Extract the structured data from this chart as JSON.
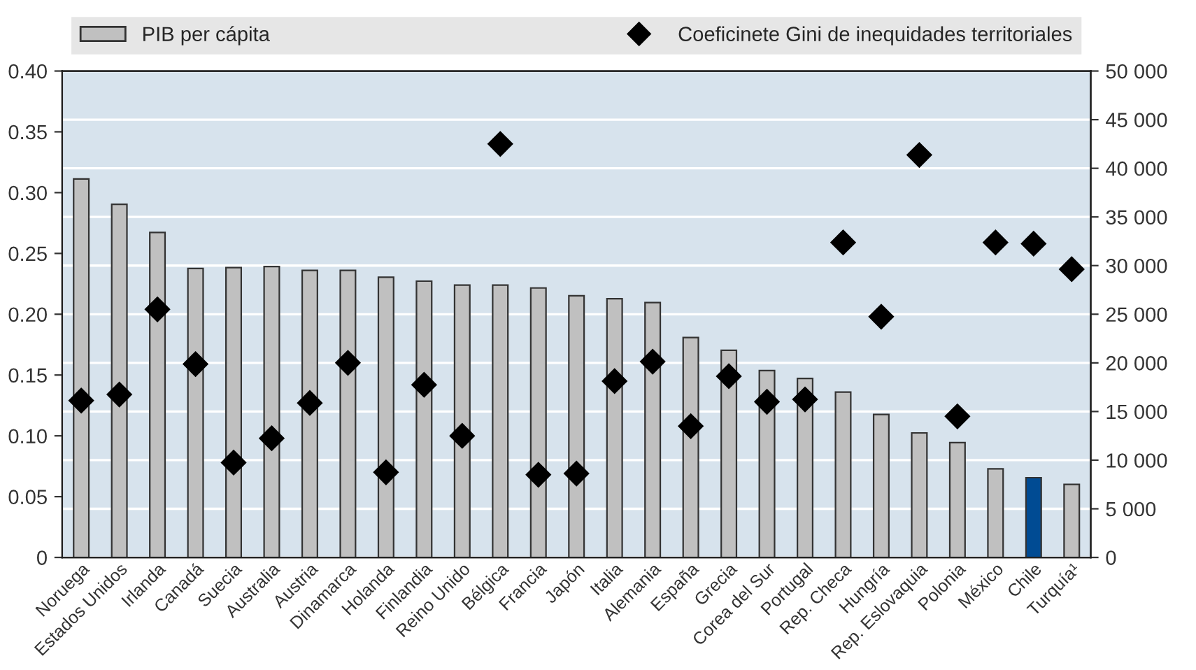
{
  "chart_data": {
    "type": "bar",
    "categories": [
      "Noruega",
      "Estados Unidos",
      "Irlanda",
      "Canadá",
      "Suecia",
      "Australia",
      "Austria",
      "Dinamarca",
      "Holanda",
      "Finlandia",
      "Reino Unido",
      "Bélgica",
      "Francia",
      "Japón",
      "Italia",
      "Alemania",
      "España",
      "Grecia",
      "Corea del Sur",
      "Portugal",
      "Rep. Checa",
      "Hungría",
      "Rep. Eslovaquia",
      "Polonia",
      "México",
      "Chile",
      "Turquía¹"
    ],
    "series": [
      {
        "name": "PIB per cápita",
        "axis": "y2",
        "color": "#c0c0c0",
        "colors": [
          "#c0c0c0",
          "#c0c0c0",
          "#c0c0c0",
          "#c0c0c0",
          "#c0c0c0",
          "#c0c0c0",
          "#c0c0c0",
          "#c0c0c0",
          "#c0c0c0",
          "#c0c0c0",
          "#c0c0c0",
          "#c0c0c0",
          "#c0c0c0",
          "#c0c0c0",
          "#c0c0c0",
          "#c0c0c0",
          "#c0c0c0",
          "#c0c0c0",
          "#c0c0c0",
          "#c0c0c0",
          "#c0c0c0",
          "#c0c0c0",
          "#c0c0c0",
          "#c0c0c0",
          "#c0c0c0",
          "#004b93",
          "#c0c0c0"
        ],
        "values": [
          38900,
          36300,
          33400,
          29700,
          29800,
          29900,
          29500,
          29500,
          28800,
          28400,
          28000,
          28000,
          27700,
          26900,
          26600,
          26200,
          22600,
          21300,
          19200,
          18400,
          17000,
          14700,
          12800,
          11800,
          9100,
          8200,
          7500
        ]
      },
      {
        "name": "Coeficinete Gini de inequidades territoriales",
        "type": "scatter",
        "color": "#000000",
        "values": [
          0.129,
          0.134,
          0.204,
          0.159,
          0.078,
          0.098,
          0.127,
          0.16,
          0.07,
          0.142,
          0.1,
          0.34,
          0.068,
          0.069,
          0.145,
          0.161,
          0.108,
          0.149,
          0.128,
          0.13,
          0.259,
          0.198,
          0.331,
          0.116,
          0.259,
          0.258,
          0.237
        ]
      }
    ],
    "marker": "diamond",
    "ylim": [
      0,
      0.4
    ],
    "yticks": [
      {
        "value": 0,
        "label": "0"
      },
      {
        "value": 0.05,
        "label": "0.05"
      },
      {
        "value": 0.1,
        "label": "0.10"
      },
      {
        "value": 0.15,
        "label": "0.15"
      },
      {
        "value": 0.2,
        "label": "0.20"
      },
      {
        "value": 0.25,
        "label": "0.25"
      },
      {
        "value": 0.3,
        "label": "0.30"
      },
      {
        "value": 0.35,
        "label": "0.35"
      },
      {
        "value": 0.4,
        "label": "0.40"
      }
    ],
    "y2lim": [
      0,
      50000
    ],
    "y2ticks": [
      {
        "value": 0,
        "label": "0"
      },
      {
        "value": 5000,
        "label": "5 000"
      },
      {
        "value": 10000,
        "label": "10 000"
      },
      {
        "value": 15000,
        "label": "15 000"
      },
      {
        "value": 20000,
        "label": "20 000"
      },
      {
        "value": 25000,
        "label": "25 000"
      },
      {
        "value": 30000,
        "label": "30 000"
      },
      {
        "value": 35000,
        "label": "35 000"
      },
      {
        "value": 40000,
        "label": "40 000"
      },
      {
        "value": 45000,
        "label": "45 000"
      },
      {
        "value": 50000,
        "label": "50 000"
      }
    ],
    "grid": true,
    "legend": "top"
  }
}
